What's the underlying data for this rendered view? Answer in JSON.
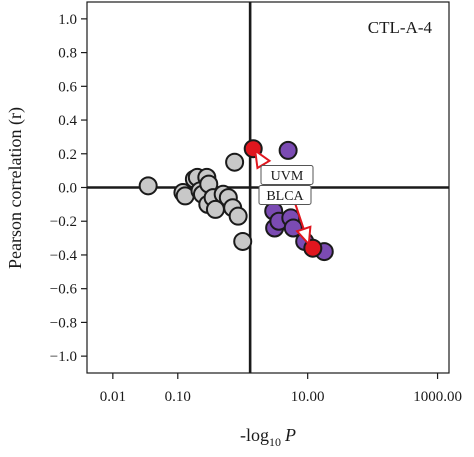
{
  "chart_data": {
    "type": "scatter",
    "title": "CTL-A-4",
    "xlabel_prefix": "-log",
    "xlabel_sub": "10",
    "xlabel_var": "P",
    "ylabel": "Pearson correlation (r)",
    "xscale": "log",
    "xlim": [
      0.004,
      1500
    ],
    "ylim": [
      -1.1,
      1.1
    ],
    "xticks": [
      0.01,
      0.1,
      10,
      1000
    ],
    "xtick_labels": [
      "0.01",
      "0.10",
      "10.00",
      "1000.00"
    ],
    "yticks": [
      1.0,
      0.8,
      0.6,
      0.4,
      0.2,
      0.0,
      -0.2,
      -0.4,
      -0.6,
      -0.8,
      -1.0
    ],
    "ytick_labels": [
      "1.0",
      "0.8",
      "0.6",
      "0.4",
      "0.2",
      "0.0",
      "−0.2",
      "−0.4",
      "−0.6",
      "−0.8",
      "−1.0"
    ],
    "threshold_x": 1.3,
    "threshold_y": 0.0,
    "grid": false,
    "colors": {
      "not_significant": "#c8c8c8",
      "significant": "#7b4bb3",
      "highlighted": "#e0161e",
      "outline": "#1a1a1a",
      "arrow": "#e0161e"
    },
    "series": [
      {
        "group": "not_significant",
        "points": [
          {
            "x": 0.035,
            "y": 0.01
          },
          {
            "x": 0.12,
            "y": -0.03
          },
          {
            "x": 0.13,
            "y": -0.05
          },
          {
            "x": 0.18,
            "y": 0.05
          },
          {
            "x": 0.2,
            "y": 0.06
          },
          {
            "x": 0.22,
            "y": -0.02
          },
          {
            "x": 0.24,
            "y": -0.04
          },
          {
            "x": 0.28,
            "y": 0.06
          },
          {
            "x": 0.3,
            "y": 0.02
          },
          {
            "x": 0.29,
            "y": -0.1
          },
          {
            "x": 0.35,
            "y": -0.06
          },
          {
            "x": 0.38,
            "y": -0.13
          },
          {
            "x": 0.5,
            "y": -0.04
          },
          {
            "x": 0.6,
            "y": -0.06
          },
          {
            "x": 0.7,
            "y": -0.12
          },
          {
            "x": 0.75,
            "y": 0.15
          },
          {
            "x": 0.85,
            "y": -0.17
          },
          {
            "x": 1.0,
            "y": -0.32
          }
        ]
      },
      {
        "group": "significant",
        "points": [
          {
            "x": 5.0,
            "y": 0.22
          },
          {
            "x": 3.0,
            "y": -0.14
          },
          {
            "x": 3.1,
            "y": -0.24
          },
          {
            "x": 3.6,
            "y": -0.2
          },
          {
            "x": 5.5,
            "y": -0.18
          },
          {
            "x": 6.0,
            "y": -0.24
          },
          {
            "x": 9.0,
            "y": -0.32
          },
          {
            "x": 18.0,
            "y": -0.38
          }
        ]
      },
      {
        "group": "highlighted",
        "points": [
          {
            "x": 1.45,
            "y": 0.23,
            "label": "UVM"
          },
          {
            "x": 12.0,
            "y": -0.36,
            "label": "BLCA"
          }
        ]
      }
    ],
    "annotations": [
      {
        "text": "UVM"
      },
      {
        "text": "BLCA"
      }
    ]
  }
}
